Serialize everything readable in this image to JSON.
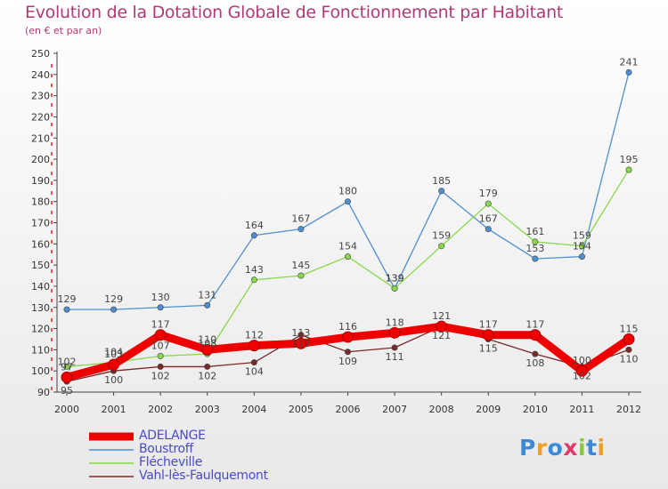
{
  "title": "Evolution de la Dotation Globale de Fonctionnement par Habitant",
  "subtitle": "(en € et par an)",
  "logo_text": "Proxiti",
  "chart_data": {
    "type": "line",
    "x": [
      "2000",
      "2001",
      "2002",
      "2003",
      "2004",
      "2005",
      "2006",
      "2007",
      "2008",
      "2009",
      "2010",
      "2011",
      "2012"
    ],
    "ylim": [
      90,
      250
    ],
    "yticks": [
      90,
      100,
      110,
      120,
      130,
      140,
      150,
      160,
      170,
      180,
      190,
      200,
      210,
      220,
      230,
      240,
      250
    ],
    "grid": false,
    "legend_position": "bottom-left",
    "series": [
      {
        "name": "ADELANGE",
        "color": "#ee0000",
        "values": [
          97,
          103,
          117,
          110,
          112,
          113,
          116,
          118,
          121,
          117,
          117,
          100,
          115
        ],
        "labels": [
          "97",
          "103",
          "117",
          "110",
          "112",
          "113",
          "116",
          "118",
          "121",
          "117",
          "117",
          "100",
          "115"
        ]
      },
      {
        "name": "Boustroff",
        "color": "#4f8fd0",
        "values": [
          129,
          129,
          130,
          131,
          164,
          167,
          180,
          139,
          185,
          167,
          153,
          154,
          241
        ],
        "labels": [
          "129",
          "129",
          "130",
          "131",
          "164",
          "167",
          "180",
          "139",
          "185",
          "167",
          "153",
          "154",
          "241"
        ]
      },
      {
        "name": "Flécheville",
        "color": "#88d84a",
        "values": [
          102,
          104,
          107,
          108,
          143,
          145,
          154,
          139,
          159,
          179,
          161,
          159,
          195
        ],
        "labels": [
          "102",
          "104",
          "107",
          "108",
          "143",
          "145",
          "154",
          "139",
          "159",
          "179",
          "161",
          "159",
          "195"
        ]
      },
      {
        "name": "Vahl-lès-Faulquemont",
        "color": "#7a2a2a",
        "values": [
          95,
          100,
          102,
          102,
          104,
          117,
          109,
          111,
          121,
          115,
          108,
          102,
          110
        ],
        "labels": [
          "95",
          "100",
          "102",
          "102",
          "104",
          "117",
          "109",
          "111",
          "121",
          "115",
          "108",
          "102",
          "110"
        ]
      }
    ]
  }
}
